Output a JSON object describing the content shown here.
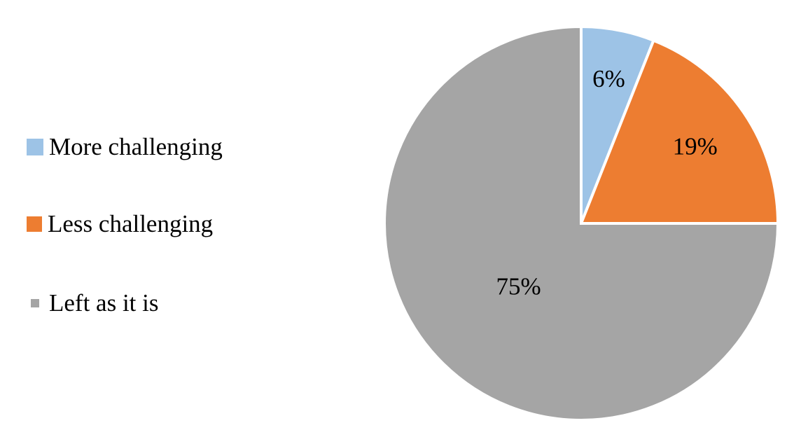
{
  "chart_data": {
    "type": "pie",
    "categories": [
      "More challenging",
      "Less challenging",
      "Left as it is"
    ],
    "values": [
      6,
      19,
      75
    ],
    "data_labels": [
      "6%",
      "19%",
      "75%"
    ],
    "colors": [
      "#9DC3E6",
      "#ED7D31",
      "#A5A5A5"
    ],
    "start_angle": "12 o'clock",
    "direction": "clockwise",
    "legend_placement": "left",
    "title": ""
  }
}
